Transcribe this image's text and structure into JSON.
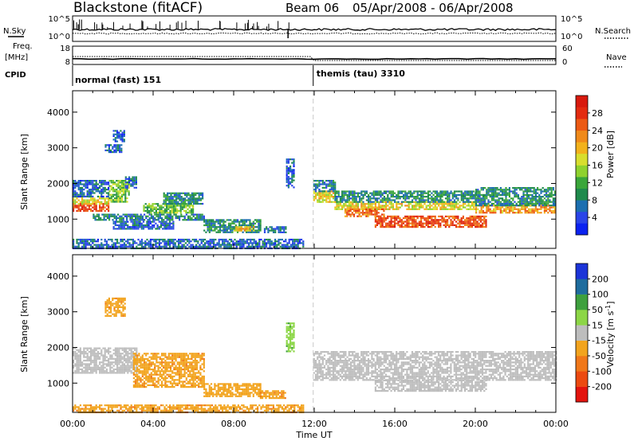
{
  "header": {
    "station": "Blackstone (fitACF)",
    "beam": "Beam 06",
    "date_range": "05/Apr/2008 - 06/Apr/2008"
  },
  "labels": {
    "nsky": "N.Sky",
    "nsearch": "N.Search",
    "freq_line1": "Freq.",
    "freq_line2": "[MHz]",
    "nave": "Nave",
    "cpid": "CPID"
  },
  "ticks": {
    "nsky_top": "10^5",
    "nsky_bottom": "10^0",
    "nsearch_top": "10^5",
    "nsearch_bottom": "10^0",
    "freq_top": "18",
    "freq_bottom": "8",
    "nave_top": "60",
    "nave_bottom": "0"
  },
  "cpid": {
    "left": "normal (fast) 151",
    "right": "themis (tau) 3310",
    "switch_hour": 11.95
  },
  "chart_data": [
    {
      "type": "heatmap",
      "name": "power",
      "ylabel": "Slant Range [km]",
      "ylim": [
        180,
        4600
      ],
      "yticks": [
        "1000",
        "2000",
        "3000",
        "4000"
      ],
      "ytick_values": [
        1000,
        2000,
        3000,
        4000
      ],
      "colorbar": {
        "label": "Power [dB]",
        "ticks": [
          "4",
          "8",
          "12",
          "16",
          "20",
          "24",
          "28"
        ],
        "tick_values": [
          4,
          8,
          12,
          16,
          20,
          24,
          28
        ],
        "range": [
          0,
          32
        ],
        "colors": [
          "#0b22f0",
          "#2a45e8",
          "#1c6fb0",
          "#1f8a4c",
          "#3aa63a",
          "#8fd22e",
          "#d8de2e",
          "#f2b21c",
          "#f08a1a",
          "#ec5a14",
          "#e32b10",
          "#d81a0e"
        ]
      },
      "bands": [
        {
          "t0": 0.0,
          "t1": 1.8,
          "r0": 1250,
          "r1": 1450,
          "value": 26
        },
        {
          "t0": 0.0,
          "t1": 1.8,
          "r0": 1450,
          "r1": 1650,
          "value": 18
        },
        {
          "t0": 0.0,
          "t1": 1.8,
          "r0": 1650,
          "r1": 2100,
          "value": 6
        },
        {
          "t0": 1.8,
          "t1": 2.8,
          "r0": 1500,
          "r1": 2100,
          "value": 14
        },
        {
          "t0": 2.6,
          "t1": 3.2,
          "r0": 1900,
          "r1": 2200,
          "value": 6
        },
        {
          "t0": 1.6,
          "t1": 2.4,
          "r0": 2900,
          "r1": 3100,
          "value": 6
        },
        {
          "t0": 2.0,
          "t1": 2.6,
          "r0": 3200,
          "r1": 3500,
          "value": 5
        },
        {
          "t0": 1.0,
          "t1": 6.5,
          "r0": 1000,
          "r1": 1150,
          "value": 8
        },
        {
          "t0": 3.5,
          "t1": 6.0,
          "r0": 1200,
          "r1": 1450,
          "value": 13
        },
        {
          "t0": 4.5,
          "t1": 6.5,
          "r0": 1450,
          "r1": 1750,
          "value": 9
        },
        {
          "t0": 2.0,
          "t1": 5.0,
          "r0": 750,
          "r1": 950,
          "value": 6
        },
        {
          "t0": 6.5,
          "t1": 9.3,
          "r0": 650,
          "r1": 1000,
          "value": 9
        },
        {
          "t0": 8.0,
          "t1": 9.0,
          "r0": 700,
          "r1": 800,
          "value": 20
        },
        {
          "t0": 9.5,
          "t1": 10.6,
          "r0": 650,
          "r1": 800,
          "value": 7
        },
        {
          "t0": 10.6,
          "t1": 11.0,
          "r0": 1900,
          "r1": 2700,
          "value": 6
        },
        {
          "t0": 0.0,
          "t1": 11.5,
          "r0": 180,
          "r1": 450,
          "value": 6
        },
        {
          "t0": 11.95,
          "t1": 13.0,
          "r0": 1500,
          "r1": 1800,
          "value": 18
        },
        {
          "t0": 11.95,
          "t1": 13.0,
          "r0": 1800,
          "r1": 2100,
          "value": 8
        },
        {
          "t0": 13.0,
          "t1": 20.0,
          "r0": 1300,
          "r1": 1500,
          "value": 18
        },
        {
          "t0": 13.0,
          "t1": 20.0,
          "r0": 1500,
          "r1": 1800,
          "value": 9
        },
        {
          "t0": 15.0,
          "t1": 20.5,
          "r0": 800,
          "r1": 1100,
          "value": 26
        },
        {
          "t0": 13.5,
          "t1": 15.5,
          "r0": 1100,
          "r1": 1300,
          "value": 24
        },
        {
          "t0": 20.0,
          "t1": 24.0,
          "r0": 1200,
          "r1": 1400,
          "value": 22
        },
        {
          "t0": 20.0,
          "t1": 24.0,
          "r0": 1400,
          "r1": 1900,
          "value": 9
        }
      ]
    },
    {
      "type": "heatmap",
      "name": "velocity",
      "ylabel": "Slant Range [km]",
      "ylim": [
        180,
        4600
      ],
      "yticks": [
        "1000",
        "2000",
        "3000",
        "4000"
      ],
      "ytick_values": [
        1000,
        2000,
        3000,
        4000
      ],
      "colorbar": {
        "label": "Velocity [m s^-1]",
        "ticks": [
          "200",
          "100",
          "50",
          "15",
          "-15",
          "-50",
          "-100",
          "-200"
        ],
        "colors": [
          "#e3140e",
          "#ec4a10",
          "#f0781a",
          "#f2a41e",
          "#bdbdbd",
          "#8cd646",
          "#3ea03e",
          "#1e6c9e",
          "#1c34d8"
        ]
      },
      "bands": [
        {
          "t0": 0.0,
          "t1": 3.2,
          "r0": 1300,
          "r1": 2000,
          "value": 0
        },
        {
          "t0": 1.6,
          "t1": 2.6,
          "r0": 2900,
          "r1": 3400,
          "value": -40
        },
        {
          "t0": 3.0,
          "t1": 6.5,
          "r0": 900,
          "r1": 1850,
          "value": -40
        },
        {
          "t0": 6.5,
          "t1": 9.3,
          "r0": 650,
          "r1": 1000,
          "value": -30
        },
        {
          "t0": 9.3,
          "t1": 10.6,
          "r0": 600,
          "r1": 800,
          "value": -40
        },
        {
          "t0": 0.0,
          "t1": 11.5,
          "r0": 180,
          "r1": 400,
          "value": -40
        },
        {
          "t0": 10.6,
          "t1": 11.0,
          "r0": 1900,
          "r1": 2700,
          "value": 40
        },
        {
          "t0": 11.95,
          "t1": 24.0,
          "r0": 1100,
          "r1": 1900,
          "value": 0
        },
        {
          "t0": 15.0,
          "t1": 20.5,
          "r0": 800,
          "r1": 1100,
          "value": 0
        }
      ]
    }
  ],
  "xaxis": {
    "label": "Time UT",
    "ticks": [
      "00:00",
      "04:00",
      "08:00",
      "12:00",
      "16:00",
      "20:00",
      "00:00"
    ],
    "tick_hours": [
      0,
      4,
      8,
      12,
      16,
      20,
      24
    ],
    "range": [
      0,
      24
    ]
  }
}
